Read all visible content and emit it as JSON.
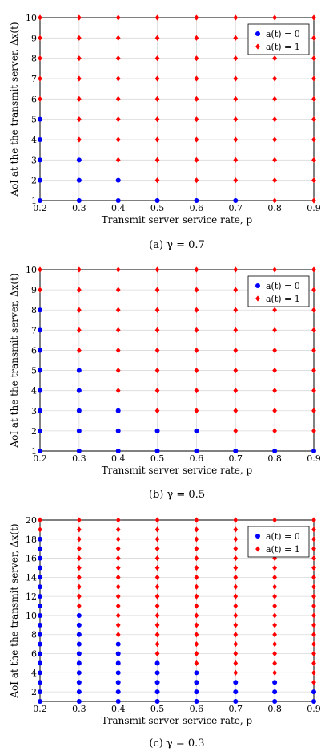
{
  "chart_data": [
    {
      "type": "scatter",
      "caption": "(a) γ = 0.7",
      "xlabel": "Transmit server service rate, p",
      "ylabel": "AoI at the the transmit server, Δx(t)",
      "xlim": [
        0.2,
        0.9
      ],
      "ylim": [
        1,
        10
      ],
      "x": [
        0.2,
        0.3,
        0.4,
        0.5,
        0.6,
        0.7,
        0.8,
        0.9
      ],
      "y_ticks": [
        1,
        2,
        3,
        4,
        5,
        6,
        7,
        8,
        9,
        10
      ],
      "legend_position": "top-right",
      "grid": true,
      "series": [
        {
          "name": "a(t) = 0",
          "color": "#0000ff",
          "marker": "circle",
          "points": [
            [
              0.2,
              1
            ],
            [
              0.2,
              2
            ],
            [
              0.2,
              3
            ],
            [
              0.2,
              4
            ],
            [
              0.2,
              5
            ],
            [
              0.3,
              1
            ],
            [
              0.3,
              2
            ],
            [
              0.3,
              3
            ],
            [
              0.4,
              1
            ],
            [
              0.4,
              2
            ],
            [
              0.5,
              1
            ],
            [
              0.6,
              1
            ],
            [
              0.7,
              1
            ]
          ]
        },
        {
          "name": "a(t) = 1",
          "color": "#ff0000",
          "marker": "diamond",
          "thresholds": [
            6,
            4,
            3,
            2,
            2,
            2,
            1,
            1
          ]
        }
      ]
    },
    {
      "type": "scatter",
      "caption": "(b) γ = 0.5",
      "xlabel": "Transmit server service rate, p",
      "ylabel": "AoI at the the transmit server, Δx(t)",
      "xlim": [
        0.2,
        0.9
      ],
      "ylim": [
        1,
        10
      ],
      "x": [
        0.2,
        0.3,
        0.4,
        0.5,
        0.6,
        0.7,
        0.8,
        0.9
      ],
      "y_ticks": [
        1,
        2,
        3,
        4,
        5,
        6,
        7,
        8,
        9,
        10
      ],
      "legend_position": "top-right",
      "grid": true,
      "series": [
        {
          "name": "a(t) = 0",
          "color": "#0000ff",
          "marker": "circle",
          "thresholds": [
            9,
            6,
            4,
            3,
            3,
            2,
            2,
            2
          ]
        },
        {
          "name": "a(t) = 1",
          "color": "#ff0000",
          "marker": "diamond",
          "thresholds": [
            9,
            6,
            4,
            3,
            3,
            2,
            2,
            2
          ]
        }
      ]
    },
    {
      "type": "scatter",
      "caption": "(c) γ = 0.3",
      "xlabel": "Transmit server service rate, p",
      "ylabel": "AoI at the the transmit server, Δx(t)",
      "xlim": [
        0.2,
        0.9
      ],
      "ylim": [
        1,
        20
      ],
      "x": [
        0.2,
        0.3,
        0.4,
        0.5,
        0.6,
        0.7,
        0.8,
        0.9
      ],
      "y_ticks": [
        2,
        4,
        6,
        8,
        10,
        12,
        14,
        16,
        18,
        20
      ],
      "legend_position": "top-right",
      "grid": true,
      "series": [
        {
          "name": "a(t) = 0",
          "color": "#0000ff",
          "marker": "circle",
          "thresholds": [
            19,
            11,
            8,
            6,
            5,
            4,
            4,
            3
          ]
        },
        {
          "name": "a(t) = 1",
          "color": "#ff0000",
          "marker": "diamond",
          "thresholds": [
            19,
            11,
            8,
            6,
            5,
            4,
            4,
            3
          ]
        }
      ]
    }
  ],
  "layout_note": ""
}
